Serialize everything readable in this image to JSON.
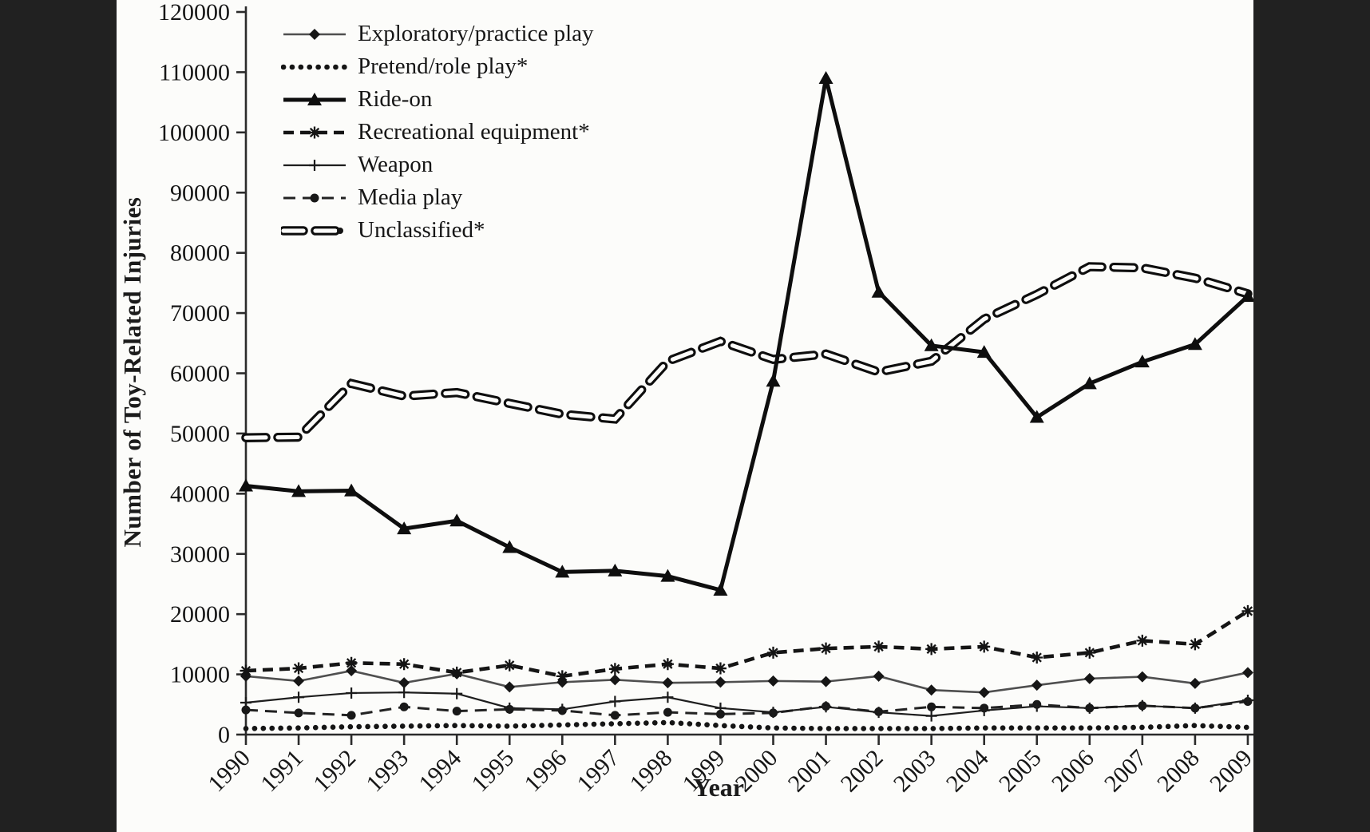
{
  "figure": {
    "y_axis_title": "Number of Toy-Related Injuries",
    "x_axis_title": "Year",
    "background": "photographed journal figure with dark side borders"
  },
  "colors": {
    "ink": "#151515",
    "soft_ink": "#4a4a4a",
    "photo_bg": "#fcfcfa",
    "border_bar": "#212121"
  },
  "chart_data": {
    "type": "line",
    "title": "",
    "xlabel": "Year",
    "ylabel": "Number of Toy-Related Injuries",
    "x": [
      1990,
      1991,
      1992,
      1993,
      1994,
      1995,
      1996,
      1997,
      1998,
      1999,
      2000,
      2001,
      2002,
      2003,
      2004,
      2005,
      2006,
      2007,
      2008,
      2009
    ],
    "x_tick_labels": [
      "1990",
      "1991",
      "1992",
      "1993",
      "1994",
      "1995",
      "1996",
      "1997",
      "1998",
      "1999",
      "2000",
      "2001",
      "2002",
      "2003",
      "2004",
      "2005",
      "2006",
      "2007",
      "2008",
      "2009"
    ],
    "ylim": [
      0,
      120000
    ],
    "ytick_step": 10000,
    "y_tick_labels": [
      "0",
      "10000",
      "20000",
      "30000",
      "40000",
      "50000",
      "60000",
      "70000",
      "80000",
      "90000",
      "100000",
      "110000",
      "120000"
    ],
    "grid": false,
    "legend_position": "top-left-inside",
    "series": [
      {
        "name": "Exploratory/practice play",
        "marker": "diamond",
        "line": "solid-thin-gray",
        "values": [
          9700,
          8900,
          10600,
          8600,
          10100,
          7900,
          8700,
          9100,
          8600,
          8700,
          8900,
          8800,
          9700,
          7400,
          7000,
          8200,
          9300,
          9600,
          8500,
          10300
        ]
      },
      {
        "name": "Pretend/role play*",
        "marker": "none",
        "line": "dotted",
        "values": [
          1000,
          1100,
          1300,
          1400,
          1500,
          1400,
          1600,
          1800,
          2000,
          1500,
          1100,
          1000,
          1000,
          1000,
          1100,
          1100,
          1100,
          1200,
          1500,
          1200
        ]
      },
      {
        "name": "Ride-on",
        "marker": "triangle",
        "line": "solid-thick",
        "values": [
          41300,
          40400,
          40500,
          34200,
          35500,
          31100,
          27000,
          27200,
          26300,
          24000,
          58700,
          109000,
          73500,
          64600,
          63500,
          52700,
          58300,
          61900,
          64800,
          72800
        ]
      },
      {
        "name": "Recreational equipment*",
        "marker": "asterisk",
        "line": "dashed-bold",
        "values": [
          10600,
          11000,
          11900,
          11700,
          10300,
          11500,
          9700,
          10900,
          11700,
          11000,
          13600,
          14300,
          14600,
          14200,
          14600,
          12800,
          13600,
          15600,
          15000,
          20500
        ]
      },
      {
        "name": "Weapon",
        "marker": "plus",
        "line": "solid-thin",
        "values": [
          5300,
          6200,
          6900,
          7000,
          6800,
          4400,
          4200,
          5500,
          6200,
          4400,
          3700,
          4600,
          3700,
          3100,
          4000,
          4700,
          4400,
          4800,
          4400,
          5700
        ]
      },
      {
        "name": "Media play",
        "marker": "circle",
        "line": "dashed-medium",
        "values": [
          4100,
          3600,
          3200,
          4600,
          3900,
          4200,
          4000,
          3200,
          3700,
          3400,
          3600,
          4700,
          3800,
          4600,
          4400,
          5000,
          4400,
          4800,
          4400,
          5500
        ]
      },
      {
        "name": "Unclassified*",
        "marker": "none",
        "line": "dashed-capsule",
        "values": [
          49300,
          49400,
          58300,
          56200,
          56800,
          55000,
          53200,
          52400,
          62000,
          65300,
          62300,
          63200,
          60200,
          62000,
          69000,
          73100,
          77700,
          77500,
          75800,
          73200
        ]
      }
    ]
  }
}
